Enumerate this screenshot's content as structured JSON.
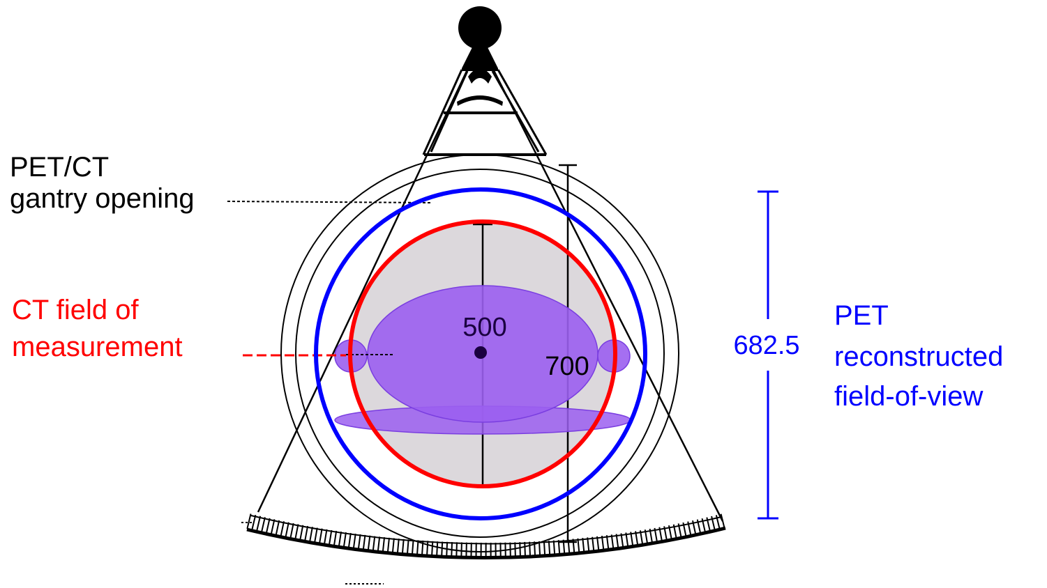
{
  "labels": {
    "gantry_line1": "PET/CT",
    "gantry_line2": "gantry opening",
    "ct_line1": "CT field of",
    "ct_line2": "measurement",
    "pet_line1": "PET",
    "pet_line2": "reconstructed",
    "pet_line3": "field-of-view"
  },
  "dimensions": {
    "ct_fom": "500",
    "gantry_bore": "700",
    "pet_fov": "682.5"
  },
  "colors": {
    "ct": "#ff0000",
    "pet": "#0000ff",
    "phantom": "#9b5ff0",
    "ct_fill": "#dcd8dc",
    "outline": "#000000"
  }
}
